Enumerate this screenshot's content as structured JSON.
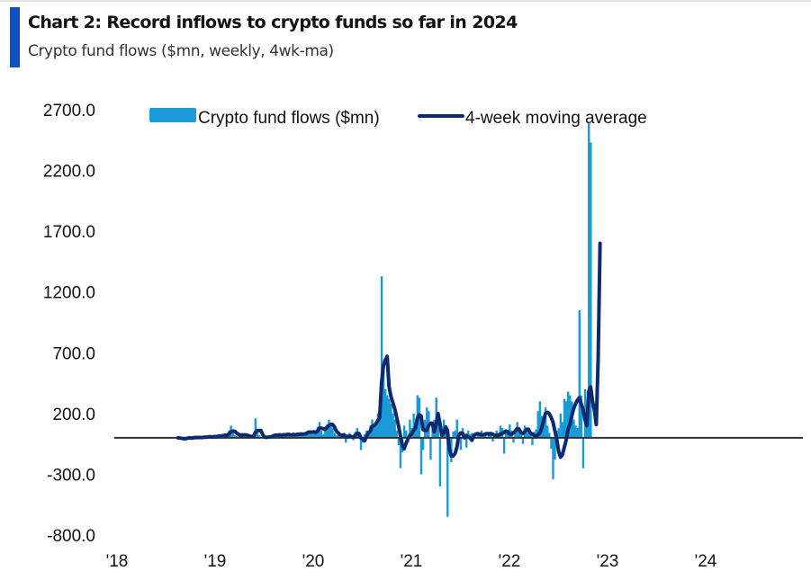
{
  "header": {
    "title": "Chart 2: Record inflows to crypto funds so far in 2024",
    "subtitle": "Crypto fund flows ($mn, weekly, 4wk-ma)",
    "accent_color": "#0a53c2"
  },
  "chart_data": {
    "type": "bar",
    "title": "Chart 2: Record inflows to crypto funds so far in 2024",
    "subtitle": "Crypto fund flows ($mn, weekly, 4wk-ma)",
    "xlabel": "",
    "ylabel": "",
    "ylim": [
      -800,
      2700
    ],
    "yticks": [
      2700,
      2200,
      1700,
      1200,
      700,
      200,
      -300,
      -800
    ],
    "ytick_labels": [
      "2700.0",
      "2200.0",
      "1700.0",
      "1200.0",
      "700.0",
      "200.0",
      "-300.0",
      "-800.0"
    ],
    "xlim": [
      2018,
      2025
    ],
    "xticks": [
      2018,
      2019,
      2020,
      2021,
      2022,
      2023,
      2024
    ],
    "xtick_labels": [
      "'18",
      "'19",
      "'20",
      "'21",
      "'22",
      "'23",
      "'24"
    ],
    "grid": false,
    "zero_line": true,
    "legend": {
      "placement": "top-center",
      "orientation": "horizontal"
    },
    "series": [
      {
        "name": "Crypto fund flows ($mn)",
        "kind": "bar",
        "color": "#1a9ad6",
        "x_start": 2018.65,
        "x_step_years": 0.0192,
        "values": [
          5,
          -10,
          8,
          -5,
          -15,
          10,
          6,
          -8,
          12,
          4,
          -6,
          10,
          8,
          -4,
          15,
          6,
          10,
          12,
          -5,
          20,
          8,
          12,
          25,
          10,
          18,
          30,
          15,
          60,
          100,
          45,
          20,
          15,
          10,
          25,
          40,
          20,
          10,
          15,
          5,
          8,
          10,
          160,
          60,
          20,
          10,
          5,
          -5,
          10,
          15,
          8,
          20,
          30,
          25,
          10,
          30,
          15,
          40,
          20,
          35,
          20,
          15,
          40,
          20,
          30,
          25,
          45,
          20,
          35,
          40,
          60,
          50,
          30,
          60,
          40,
          90,
          130,
          60,
          30,
          60,
          110,
          150,
          100,
          80,
          40,
          20,
          30,
          10,
          20,
          40,
          -40,
          10,
          40,
          20,
          -20,
          50,
          80,
          20,
          -100,
          -40,
          30,
          60,
          60,
          100,
          150,
          90,
          120,
          200,
          250,
          1330,
          600,
          400,
          350,
          320,
          280,
          200,
          150,
          60,
          -60,
          -250,
          -120,
          100,
          60,
          -40,
          150,
          80,
          200,
          80,
          350,
          330,
          -300,
          -100,
          150,
          250,
          220,
          -180,
          100,
          150,
          330,
          120,
          -400,
          20,
          150,
          80,
          -650,
          -120,
          -200,
          50,
          60,
          150,
          40,
          -100,
          80,
          20,
          -80,
          60,
          30,
          40,
          20,
          10,
          40,
          30,
          60,
          20,
          40,
          10,
          50,
          30,
          -30,
          20,
          60,
          40,
          100,
          80,
          -130,
          40,
          60,
          110,
          60,
          -40,
          40,
          130,
          90,
          40,
          -50,
          100,
          60,
          40,
          30,
          -60,
          50,
          70,
          220,
          300,
          180,
          150,
          250,
          100,
          40,
          -90,
          -340,
          -180,
          60,
          80,
          200,
          130,
          320,
          300,
          380,
          350,
          300,
          150,
          100,
          80,
          1050,
          350,
          -250,
          400,
          200,
          2600,
          2430
        ]
      },
      {
        "name": "4-week moving average",
        "kind": "line",
        "color": "#0d2a6e",
        "x_start": 2018.65,
        "x_step_years": 0.0192,
        "values": [
          0,
          -2,
          -5,
          -6,
          -8,
          -3,
          0,
          -3,
          0,
          3,
          2,
          3,
          3,
          2,
          6,
          5,
          8,
          10,
          6,
          10,
          9,
          12,
          15,
          16,
          18,
          22,
          22,
          31,
          50,
          55,
          55,
          40,
          30,
          20,
          22,
          24,
          24,
          20,
          15,
          10,
          10,
          45,
          60,
          60,
          60,
          24,
          5,
          4,
          6,
          8,
          12,
          20,
          22,
          22,
          25,
          20,
          25,
          25,
          28,
          28,
          22,
          28,
          25,
          28,
          28,
          32,
          30,
          32,
          35,
          45,
          48,
          45,
          50,
          45,
          55,
          80,
          80,
          75,
          70,
          85,
          100,
          110,
          110,
          90,
          55,
          40,
          25,
          20,
          25,
          12,
          10,
          15,
          10,
          5,
          20,
          35,
          35,
          0,
          -10,
          -25,
          10,
          40,
          55,
          95,
          100,
          115,
          140,
          165,
          450,
          590,
          640,
          670,
          420,
          340,
          290,
          240,
          170,
          100,
          20,
          -60,
          -90,
          -45,
          -10,
          20,
          30,
          60,
          80,
          160,
          190,
          180,
          70,
          60,
          60,
          100,
          120,
          120,
          50,
          110,
          200,
          120,
          20,
          40,
          90,
          60,
          -90,
          -150,
          -150,
          -130,
          -80,
          20,
          40,
          40,
          0,
          20,
          5,
          0,
          -20,
          20,
          30,
          35,
          30,
          25,
          25,
          30,
          35,
          30,
          35,
          30,
          20,
          20,
          20,
          30,
          35,
          45,
          55,
          50,
          30,
          30,
          40,
          55,
          75,
          70,
          45,
          35,
          50,
          70,
          70,
          40,
          30,
          20,
          10,
          25,
          40,
          80,
          140,
          200,
          210,
          200,
          170,
          130,
          60,
          -10,
          -110,
          -160,
          -140,
          -80,
          -20,
          70,
          110,
          180,
          240,
          280,
          310,
          330,
          280,
          230,
          150,
          100,
          380,
          420,
          300,
          230,
          110,
          650,
          1600
        ]
      }
    ]
  }
}
